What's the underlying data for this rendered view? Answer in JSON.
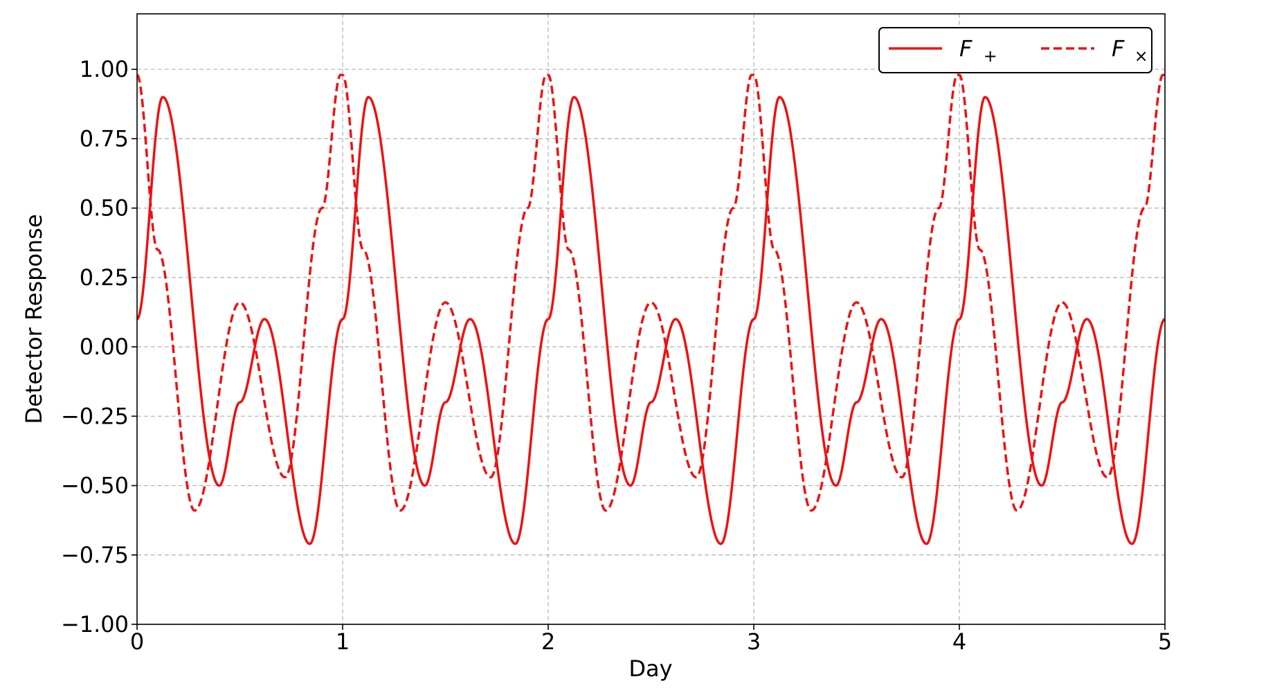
{
  "chart_data": {
    "type": "line",
    "title": "",
    "xlabel": "Day",
    "ylabel": "Detector Response",
    "xlim": [
      0,
      5
    ],
    "ylim": [
      -1.0,
      1.2
    ],
    "xticks": [
      0,
      1,
      2,
      3,
      4,
      5
    ],
    "xtick_labels": [
      "0",
      "1",
      "2",
      "3",
      "4",
      "5"
    ],
    "yticks": [
      -1.0,
      -0.75,
      -0.5,
      -0.25,
      0.0,
      0.25,
      0.5,
      0.75,
      1.0
    ],
    "ytick_labels": [
      "−1.00",
      "−0.75",
      "−0.50",
      "−0.25",
      "0.00",
      "0.25",
      "0.50",
      "0.75",
      "1.00"
    ],
    "grid": true,
    "legend_position": "top-right",
    "legend_columns": 2,
    "series_color": "#ee1111",
    "series": [
      {
        "name": "F+",
        "label_main": "F",
        "label_sub": "+",
        "line_style": "solid",
        "period_days": 1,
        "x": [
          0.0,
          0.125,
          0.4,
          0.5,
          0.62,
          0.84,
          1.0
        ],
        "y": [
          0.1,
          0.9,
          -0.5,
          -0.2,
          0.1,
          -0.71,
          0.1
        ]
      },
      {
        "name": "F×",
        "label_main": "F",
        "label_sub": "×",
        "line_style": "dashed",
        "period_days": 1,
        "x": [
          0.0,
          0.1,
          0.28,
          0.5,
          0.72,
          0.9,
          0.99
        ],
        "y": [
          0.98,
          0.35,
          -0.59,
          0.16,
          -0.47,
          0.5,
          0.98
        ]
      }
    ]
  }
}
